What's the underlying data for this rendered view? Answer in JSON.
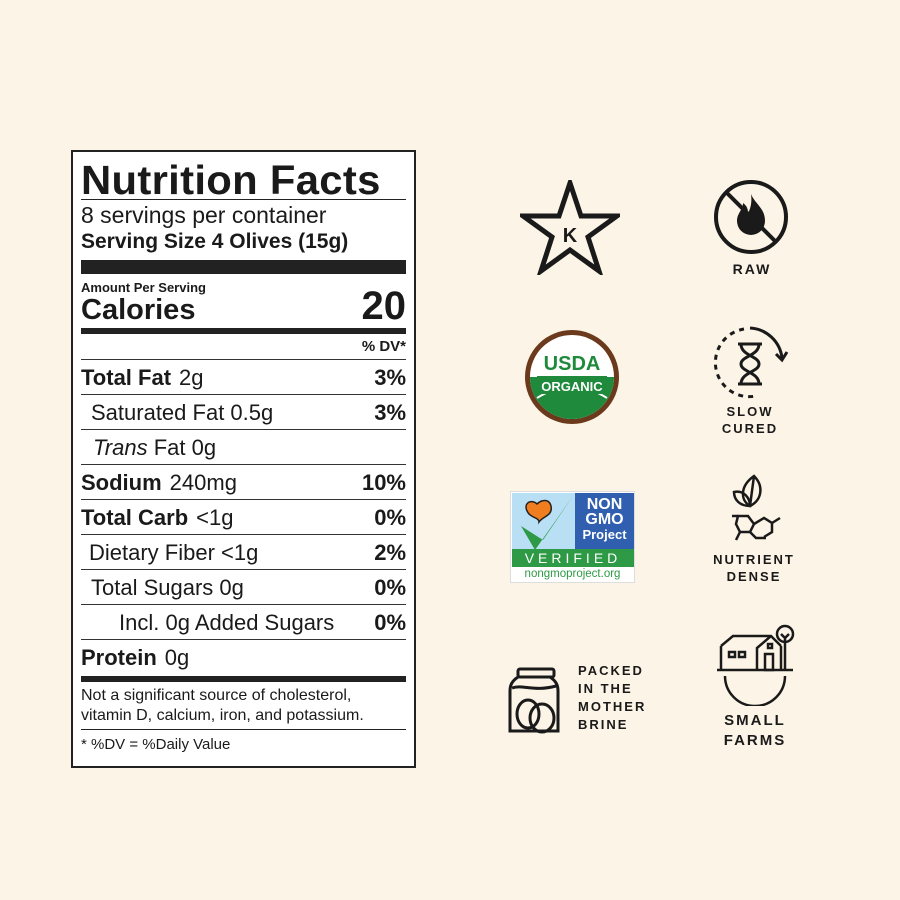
{
  "label": {
    "title": "Nutrition Facts",
    "servings": "8 servings per container",
    "serving_size": "Serving Size 4 Olives (15g)",
    "amount_per_serving": "Amount Per Serving",
    "calories_label": "Calories",
    "calories_value": "20",
    "dv_header": "% DV*",
    "rows": [
      {
        "name": "Total Fat",
        "amount": "2g",
        "pct": "3%",
        "bold": true
      },
      {
        "name": "Saturated Fat 0.5g",
        "amount": "",
        "pct": "3%",
        "bold": false
      },
      {
        "name": "Trans",
        "amount": " Fat 0g",
        "pct": "",
        "bold": false
      },
      {
        "name": "Sodium",
        "amount": "240mg",
        "pct": "10%",
        "bold": true
      },
      {
        "name": "Total Carb",
        "amount": "<1g",
        "pct": "0%",
        "bold": true
      },
      {
        "name": "Dietary Fiber  <1g",
        "amount": "",
        "pct": "2%",
        "bold": false
      },
      {
        "name": "Total Sugars 0g",
        "amount": "",
        "pct": "0%",
        "bold": false
      },
      {
        "name": "Incl. 0g Added Sugars",
        "amount": "",
        "pct": "0%",
        "bold": false
      },
      {
        "name": "Protein",
        "amount": "0g",
        "pct": "",
        "bold": true
      }
    ],
    "footnote": "Not a significant source of cholesterol, vitamin D, calcium, iron, and potassium.",
    "dv_note": "* %DV = %Daily Value"
  },
  "badges": {
    "kosher": "K",
    "raw": "RAW",
    "usda_top": "USDA",
    "usda_bottom": "ORGANIC",
    "nongmo_1": "NON",
    "nongmo_2": "GMO",
    "nongmo_3": "Project",
    "nongmo_verified": "VERIFIED",
    "nongmo_url": "nongmoproject.org",
    "slow_cured_1": "SLOW",
    "slow_cured_2": "CURED",
    "nutrient_1": "NUTRIENT",
    "nutrient_2": "DENSE",
    "packed_1": "PACKED",
    "packed_2": "IN THE",
    "packed_3": "MOTHER",
    "packed_4": "BRINE",
    "farms_1": "SMALL",
    "farms_2": "FARMS"
  },
  "colors": {
    "background": "#fcf4e6",
    "usda_green": "#1f8a3c",
    "usda_brown": "#6b3a1c",
    "nongmo_blue": "#2f5fae",
    "nongmo_green": "#2e9a45",
    "butterfly": "#f07d1e"
  }
}
